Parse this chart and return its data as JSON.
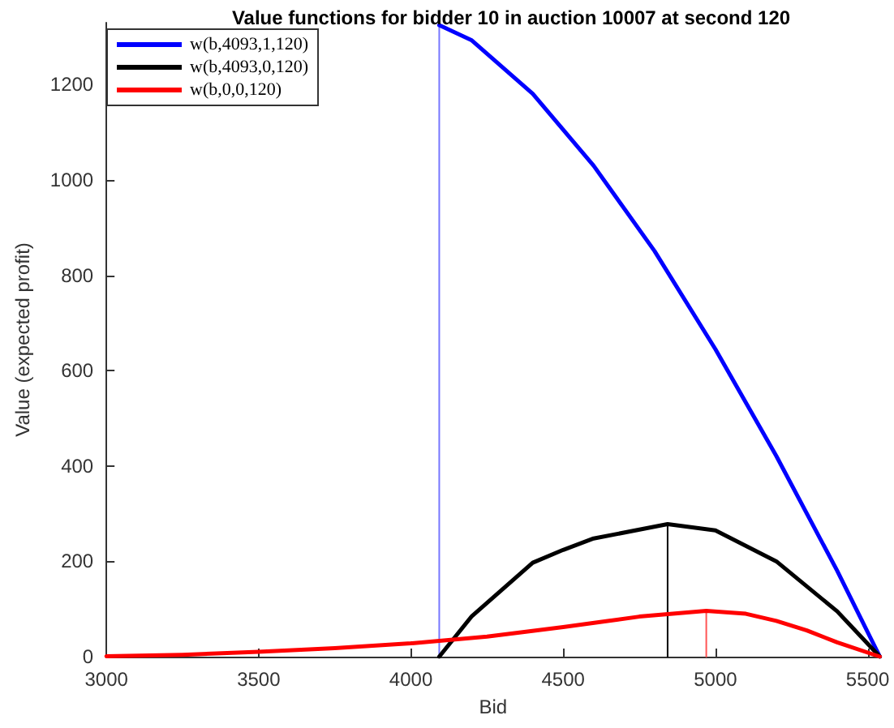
{
  "chart_data": {
    "type": "line",
    "title": "Value functions for bidder 10 in auction 10007 at second 120",
    "xlabel": "Bid",
    "ylabel": "Value (expected profit)",
    "xlim": [
      3000,
      5540
    ],
    "ylim": [
      0,
      1330
    ],
    "xticks": [
      3000,
      3500,
      4000,
      4500,
      5000,
      5500
    ],
    "yticks": [
      0,
      200,
      400,
      600,
      800,
      1000,
      1200
    ],
    "grid": false,
    "legend": "top left",
    "marker": "none",
    "line_style": "solid",
    "series": [
      {
        "name": "w(b,4093,1,120)",
        "color": "#0000ff",
        "x": [
          4093,
          4200,
          4400,
          4600,
          4800,
          5000,
          5200,
          5400,
          5540
        ],
        "values": [
          1325,
          1293,
          1181,
          1030,
          851,
          645,
          421,
          180,
          0
        ]
      },
      {
        "name": "w(b,4093,0,120)",
        "color": "#000000",
        "x": [
          4093,
          4200,
          4400,
          4500,
          4600,
          4843,
          5000,
          5200,
          5400,
          5540
        ],
        "values": [
          0,
          85,
          197,
          224,
          248,
          278,
          265,
          200,
          95,
          0
        ]
      },
      {
        "name": "w(b,0,0,120)",
        "color": "#ff0000",
        "x": [
          3000,
          3250,
          3500,
          3750,
          4000,
          4250,
          4500,
          4750,
          4970,
          5100,
          5200,
          5300,
          5400,
          5540
        ],
        "values": [
          1,
          4,
          10,
          18,
          28,
          42,
          62,
          84,
          96,
          90,
          75,
          55,
          30,
          0
        ]
      },
      {
        "color": "#7777ff",
        "x": [
          4093,
          4093
        ],
        "values": [
          0,
          1325
        ]
      },
      {
        "color": "#000000",
        "x": [
          4843,
          4843
        ],
        "values": [
          0,
          278
        ]
      },
      {
        "color": "#ff5555",
        "x": [
          4970,
          4970
        ],
        "values": [
          0,
          96
        ]
      }
    ]
  }
}
